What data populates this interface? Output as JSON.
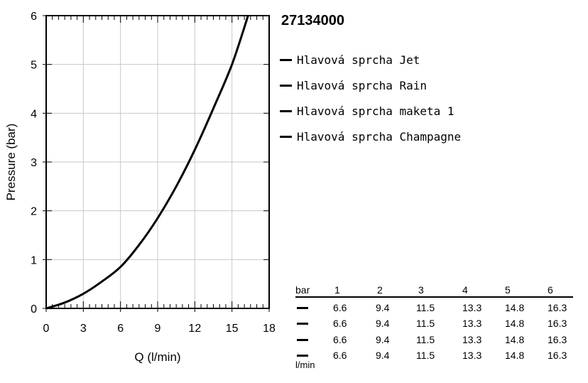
{
  "chart_data": {
    "type": "line",
    "xlabel": "Q (l/min)",
    "ylabel": "Pressure (bar)",
    "xlim": [
      0,
      18
    ],
    "ylim": [
      0,
      6
    ],
    "xticks": [
      "0",
      "3",
      "6",
      "9",
      "12",
      "15",
      "18"
    ],
    "yticks": [
      "0",
      "1",
      "2",
      "3",
      "4",
      "5",
      "6"
    ],
    "grid": true,
    "series": [
      {
        "x": [
          0,
          1.5,
          3,
          4.5,
          6,
          7.5,
          9,
          10.5,
          12,
          13.5,
          15,
          16.3
        ],
        "y": [
          0,
          0.12,
          0.3,
          0.55,
          0.85,
          1.3,
          1.85,
          2.5,
          3.25,
          4.1,
          5.0,
          6.0
        ]
      }
    ]
  },
  "product_id": "27134000",
  "legend": [
    "Hlavová sprcha Jet",
    "Hlavová sprcha Rain",
    "Hlavová sprcha maketa 1",
    "Hlavová sprcha Champagne"
  ],
  "flow_table": {
    "header_unit": "bar",
    "pressures": [
      "1",
      "2",
      "3",
      "4",
      "5",
      "6"
    ],
    "rows": [
      [
        "6.6",
        "9.4",
        "11.5",
        "13.3",
        "14.8",
        "16.3"
      ],
      [
        "6.6",
        "9.4",
        "11.5",
        "13.3",
        "14.8",
        "16.3"
      ],
      [
        "6.6",
        "9.4",
        "11.5",
        "13.3",
        "14.8",
        "16.3"
      ],
      [
        "6.6",
        "9.4",
        "11.5",
        "13.3",
        "14.8",
        "16.3"
      ]
    ],
    "footer_unit": "l/min"
  }
}
